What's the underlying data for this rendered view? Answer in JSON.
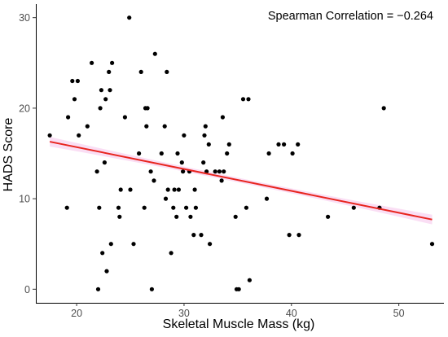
{
  "chart_data": {
    "type": "scatter",
    "title": "",
    "xlabel": "Skeletal Muscle Mass (kg)",
    "ylabel": "HADS Score",
    "xlim": [
      16.2,
      54.2
    ],
    "ylim": [
      -1.5,
      31.5
    ],
    "x_ticks": [
      20,
      30,
      40,
      50
    ],
    "y_ticks": [
      0,
      10,
      20,
      30
    ],
    "annotation": "Spearman Correlation = −0.264",
    "grid": false,
    "points": [
      [
        17.5,
        17
      ],
      [
        19.1,
        9
      ],
      [
        19.2,
        19
      ],
      [
        19.6,
        23
      ],
      [
        19.8,
        21
      ],
      [
        20.1,
        23
      ],
      [
        20.2,
        17
      ],
      [
        21.0,
        18
      ],
      [
        21.4,
        25
      ],
      [
        21.9,
        13
      ],
      [
        22.0,
        0
      ],
      [
        22.1,
        9
      ],
      [
        22.2,
        20
      ],
      [
        22.3,
        22
      ],
      [
        22.4,
        4
      ],
      [
        22.6,
        14
      ],
      [
        22.8,
        2
      ],
      [
        22.7,
        21
      ],
      [
        23.2,
        5
      ],
      [
        23.1,
        22
      ],
      [
        23.3,
        25
      ],
      [
        23.0,
        24
      ],
      [
        23.9,
        9
      ],
      [
        24.0,
        8
      ],
      [
        24.1,
        11
      ],
      [
        24.5,
        19
      ],
      [
        24.9,
        30
      ],
      [
        25.0,
        11
      ],
      [
        25.3,
        5
      ],
      [
        25.8,
        15
      ],
      [
        26.0,
        24
      ],
      [
        26.3,
        9
      ],
      [
        26.4,
        20
      ],
      [
        26.6,
        20
      ],
      [
        26.5,
        18
      ],
      [
        26.9,
        13
      ],
      [
        27.0,
        0
      ],
      [
        27.2,
        12
      ],
      [
        27.3,
        26
      ],
      [
        27.9,
        15
      ],
      [
        28.2,
        18
      ],
      [
        28.3,
        10
      ],
      [
        28.4,
        24
      ],
      [
        28.5,
        11
      ],
      [
        28.8,
        4
      ],
      [
        29.0,
        9
      ],
      [
        29.1,
        11
      ],
      [
        29.3,
        8
      ],
      [
        29.4,
        15
      ],
      [
        29.5,
        11
      ],
      [
        29.8,
        14
      ],
      [
        29.9,
        13
      ],
      [
        30.0,
        17
      ],
      [
        30.2,
        9
      ],
      [
        30.5,
        13
      ],
      [
        30.6,
        8
      ],
      [
        31.0,
        11
      ],
      [
        30.9,
        6
      ],
      [
        31.1,
        9
      ],
      [
        31.6,
        6
      ],
      [
        31.8,
        14
      ],
      [
        31.9,
        17
      ],
      [
        32.0,
        18
      ],
      [
        32.1,
        13
      ],
      [
        32.3,
        16
      ],
      [
        32.4,
        5
      ],
      [
        32.9,
        13
      ],
      [
        33.3,
        13
      ],
      [
        33.5,
        12
      ],
      [
        33.6,
        19
      ],
      [
        33.7,
        13
      ],
      [
        34.0,
        15
      ],
      [
        34.2,
        16
      ],
      [
        34.9,
        0
      ],
      [
        35.1,
        0
      ],
      [
        34.8,
        8
      ],
      [
        35.5,
        21
      ],
      [
        35.8,
        9
      ],
      [
        36.0,
        21
      ],
      [
        36.1,
        1
      ],
      [
        37.7,
        10
      ],
      [
        37.9,
        15
      ],
      [
        38.8,
        16
      ],
      [
        39.3,
        16
      ],
      [
        39.8,
        6
      ],
      [
        40.1,
        15
      ],
      [
        40.6,
        16
      ],
      [
        40.7,
        6
      ],
      [
        43.4,
        8
      ],
      [
        45.8,
        9
      ],
      [
        48.2,
        9
      ],
      [
        48.6,
        20
      ],
      [
        53.1,
        5
      ]
    ],
    "trend_line": {
      "x": [
        17.5,
        53.1
      ],
      "y": [
        16.3,
        7.7
      ],
      "color": "#e8251f",
      "band_color": "#f7c8ec"
    },
    "point_color": "#000000"
  }
}
